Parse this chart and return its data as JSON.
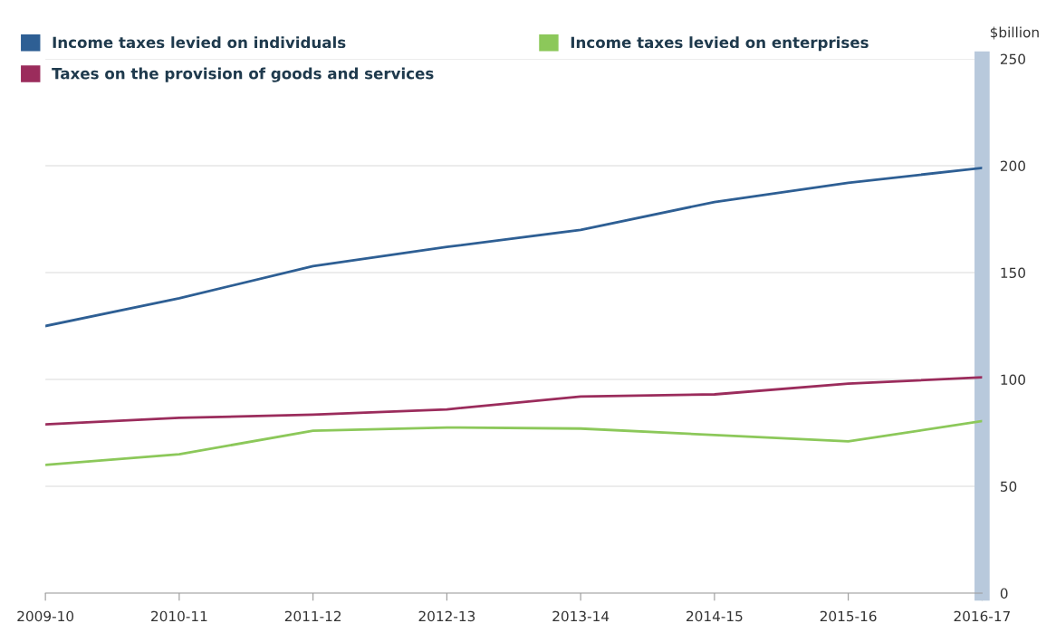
{
  "chart_data": {
    "type": "line",
    "ylabel": "$billion",
    "categories": [
      "2009-10",
      "2010-11",
      "2011-12",
      "2012-13",
      "2013-14",
      "2014-15",
      "2015-16",
      "2016-17"
    ],
    "series": [
      {
        "name": "Income taxes levied on individuals",
        "color": "#2e5f94",
        "values": [
          125,
          138,
          153,
          162,
          170,
          183,
          192,
          199
        ]
      },
      {
        "name": "Taxes on the provision of goods and services",
        "color": "#9b2c5c",
        "values": [
          79,
          82,
          83.5,
          86,
          92,
          93,
          98,
          101
        ]
      },
      {
        "name": "Income taxes levied on enterprises",
        "color": "#8cc85a",
        "values": [
          60,
          65,
          76,
          77.5,
          77,
          74,
          71,
          80.5
        ]
      }
    ],
    "ylim": [
      0,
      250
    ],
    "yticks": [
      0,
      50,
      100,
      150,
      200,
      250
    ],
    "grid": "y",
    "legend": "top left",
    "marker": "none",
    "line_style": "solid"
  }
}
